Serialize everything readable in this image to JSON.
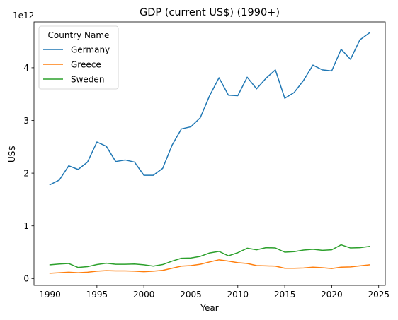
{
  "chart_data": {
    "type": "line",
    "title": "GDP (current US$) (1990+)",
    "xlabel": "Year",
    "ylabel": "US$",
    "y_offset_label": "1e12",
    "xlim": [
      1988.3,
      2025.7
    ],
    "ylim": [
      -0.13,
      4.87
    ],
    "x_ticks": [
      1990,
      1995,
      2000,
      2005,
      2010,
      2015,
      2020,
      2025
    ],
    "x_tick_labels": [
      "1990",
      "1995",
      "2000",
      "2005",
      "2010",
      "2015",
      "2020",
      "2025"
    ],
    "y_ticks": [
      0,
      1,
      2,
      3,
      4
    ],
    "y_tick_labels": [
      "0",
      "1",
      "2",
      "3",
      "4"
    ],
    "grid": false,
    "legend": {
      "title": "Country Name",
      "placement": "top-left"
    },
    "x": [
      1990,
      1991,
      1992,
      1993,
      1994,
      1995,
      1996,
      1997,
      1998,
      1999,
      2000,
      2001,
      2002,
      2003,
      2004,
      2005,
      2006,
      2007,
      2008,
      2009,
      2010,
      2011,
      2012,
      2013,
      2014,
      2015,
      2016,
      2017,
      2018,
      2019,
      2020,
      2021,
      2022,
      2023,
      2024
    ],
    "series": [
      {
        "name": "Germany",
        "color": "#1f77b4",
        "values": [
          1.78,
          1.87,
          2.14,
          2.07,
          2.21,
          2.59,
          2.51,
          2.22,
          2.25,
          2.21,
          1.96,
          1.96,
          2.09,
          2.53,
          2.84,
          2.88,
          3.05,
          3.47,
          3.81,
          3.48,
          3.47,
          3.82,
          3.6,
          3.8,
          3.96,
          3.42,
          3.53,
          3.76,
          4.05,
          3.96,
          3.94,
          4.35,
          4.16,
          4.53,
          4.66
        ]
      },
      {
        "name": "Greece",
        "color": "#ff7f0e",
        "values": [
          0.1,
          0.11,
          0.12,
          0.11,
          0.12,
          0.14,
          0.15,
          0.145,
          0.145,
          0.14,
          0.13,
          0.14,
          0.155,
          0.195,
          0.235,
          0.245,
          0.27,
          0.315,
          0.355,
          0.33,
          0.3,
          0.285,
          0.245,
          0.24,
          0.235,
          0.195,
          0.195,
          0.2,
          0.215,
          0.205,
          0.19,
          0.215,
          0.22,
          0.24,
          0.26
        ]
      },
      {
        "name": "Sweden",
        "color": "#2ca02c",
        "values": [
          0.26,
          0.275,
          0.285,
          0.21,
          0.225,
          0.265,
          0.29,
          0.27,
          0.27,
          0.275,
          0.26,
          0.235,
          0.265,
          0.33,
          0.385,
          0.39,
          0.42,
          0.485,
          0.515,
          0.43,
          0.49,
          0.575,
          0.545,
          0.585,
          0.58,
          0.5,
          0.51,
          0.54,
          0.555,
          0.535,
          0.545,
          0.64,
          0.58,
          0.585,
          0.61
        ]
      }
    ]
  }
}
